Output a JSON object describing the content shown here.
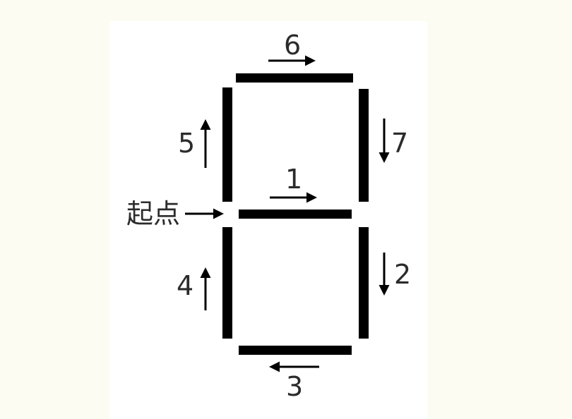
{
  "figure": {
    "start_label": "起点",
    "stroke_color": "#000000",
    "background_color": "#fdfcf3",
    "panel_color": "#ffffff",
    "segments": [
      {
        "id": "middle",
        "order_label": "1",
        "direction": "right"
      },
      {
        "id": "lower-right",
        "order_label": "2",
        "direction": "down"
      },
      {
        "id": "bottom",
        "order_label": "3",
        "direction": "left"
      },
      {
        "id": "lower-left",
        "order_label": "4",
        "direction": "up"
      },
      {
        "id": "upper-left",
        "order_label": "5",
        "direction": "up"
      },
      {
        "id": "top",
        "order_label": "6",
        "direction": "right"
      },
      {
        "id": "upper-right",
        "order_label": "7",
        "direction": "down"
      }
    ]
  }
}
